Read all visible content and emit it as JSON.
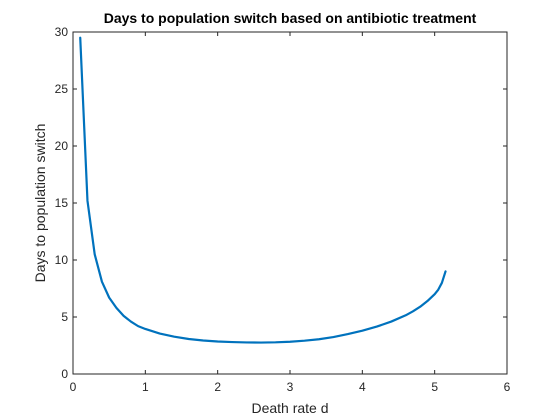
{
  "chart_data": {
    "type": "line",
    "title": "Days to population switch based on antibiotic treatment",
    "xlabel": "Death rate d",
    "ylabel": "Days to population switch",
    "xlim": [
      0,
      6
    ],
    "ylim": [
      0,
      30
    ],
    "x_ticks": [
      "0",
      "1",
      "2",
      "3",
      "4",
      "5",
      "6"
    ],
    "y_ticks": [
      "0",
      "5",
      "10",
      "15",
      "20",
      "25",
      "30"
    ],
    "grid": false,
    "legend": "none",
    "series": [
      {
        "color": "#0072BD",
        "x": [
          0.1,
          0.2,
          0.3,
          0.4,
          0.5,
          0.6,
          0.7,
          0.8,
          0.9,
          1.0,
          1.2,
          1.4,
          1.6,
          1.8,
          2.0,
          2.2,
          2.4,
          2.6,
          2.8,
          3.0,
          3.2,
          3.4,
          3.6,
          3.8,
          4.0,
          4.2,
          4.4,
          4.6,
          4.7,
          4.8,
          4.9,
          5.0,
          5.05,
          5.1,
          5.15
        ],
        "y": [
          29.5,
          15.2,
          10.5,
          8.1,
          6.7,
          5.8,
          5.1,
          4.6,
          4.2,
          3.95,
          3.55,
          3.27,
          3.07,
          2.94,
          2.85,
          2.8,
          2.77,
          2.76,
          2.78,
          2.83,
          2.92,
          3.05,
          3.24,
          3.5,
          3.8,
          4.16,
          4.6,
          5.15,
          5.5,
          5.9,
          6.4,
          7.0,
          7.4,
          8.0,
          9.0
        ]
      }
    ]
  }
}
